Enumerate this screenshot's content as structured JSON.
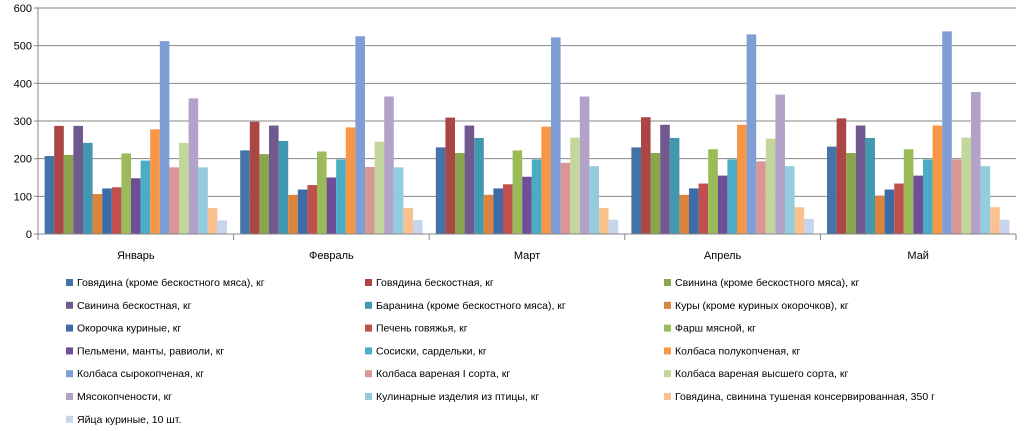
{
  "chart_data": {
    "type": "bar",
    "title": "",
    "xlabel": "",
    "ylabel": "",
    "ylim": [
      0,
      600
    ],
    "yticks": [
      0,
      100,
      200,
      300,
      400,
      500,
      600
    ],
    "grid": true,
    "legend_position": "bottom",
    "categories": [
      "Январь",
      "Февраль",
      "Март",
      "Апрель",
      "Май"
    ],
    "series": [
      {
        "name": "Говядина (кроме бескостного мяса), кг",
        "color": "#4572A7",
        "values": [
          207,
          222,
          230,
          230,
          232
        ]
      },
      {
        "name": "Говядина бескостная, кг",
        "color": "#AA4643",
        "values": [
          287,
          298,
          309,
          310,
          307
        ]
      },
      {
        "name": "Свинина (кроме бескостного мяса), кг",
        "color": "#89A54E",
        "values": [
          210,
          212,
          215,
          215,
          215
        ]
      },
      {
        "name": "Свинина бескостная, кг",
        "color": "#71588F",
        "values": [
          287,
          288,
          288,
          290,
          288
        ]
      },
      {
        "name": "Баранина (кроме бескостного мяса), кг",
        "color": "#4198AF",
        "values": [
          242,
          247,
          255,
          255,
          255
        ]
      },
      {
        "name": "Куры (кроме куриных окорочков), кг",
        "color": "#DB843D",
        "values": [
          106,
          104,
          104,
          104,
          102
        ]
      },
      {
        "name": "Окорочка куриные, кг",
        "color": "#3D6BA8",
        "values": [
          121,
          118,
          121,
          121,
          118
        ]
      },
      {
        "name": "Печень говяжья, кг",
        "color": "#C0504D",
        "values": [
          124,
          130,
          132,
          134,
          134
        ]
      },
      {
        "name": "Фарш мясной, кг",
        "color": "#9BBB59",
        "values": [
          214,
          219,
          222,
          225,
          225
        ]
      },
      {
        "name": "Пельмени, манты, равиоли, кг",
        "color": "#6F4E98",
        "values": [
          148,
          150,
          152,
          155,
          155
        ]
      },
      {
        "name": "Сосиски, сардельки, кг",
        "color": "#4BACC6",
        "values": [
          195,
          198,
          198,
          198,
          198
        ]
      },
      {
        "name": "Колбаса полукопченая, кг",
        "color": "#F79646",
        "values": [
          278,
          283,
          285,
          290,
          288
        ]
      },
      {
        "name": "Колбаса сырокопченая, кг",
        "color": "#7F9ED6",
        "values": [
          512,
          525,
          522,
          530,
          538
        ]
      },
      {
        "name": "Колбаса вареная I сорта, кг",
        "color": "#D99694",
        "values": [
          177,
          178,
          189,
          193,
          198
        ]
      },
      {
        "name": "Колбаса вареная высшего сорта, кг",
        "color": "#C3D69B",
        "values": [
          242,
          245,
          256,
          253,
          256
        ]
      },
      {
        "name": "Мясокопчености, кг",
        "color": "#B3A2C7",
        "values": [
          360,
          365,
          365,
          370,
          377
        ]
      },
      {
        "name": "Кулинарные изделия из птицы, кг",
        "color": "#93CDDD",
        "values": [
          177,
          177,
          180,
          180,
          180
        ]
      },
      {
        "name": "Говядина, свинина тушеная консервированная, 350 г",
        "color": "#FAC090",
        "values": [
          69,
          69,
          69,
          71,
          71
        ]
      },
      {
        "name": "Яйца куриные, 10 шт.",
        "color": "#C6D4EE",
        "values": [
          36,
          37,
          38,
          40,
          38
        ]
      }
    ]
  }
}
